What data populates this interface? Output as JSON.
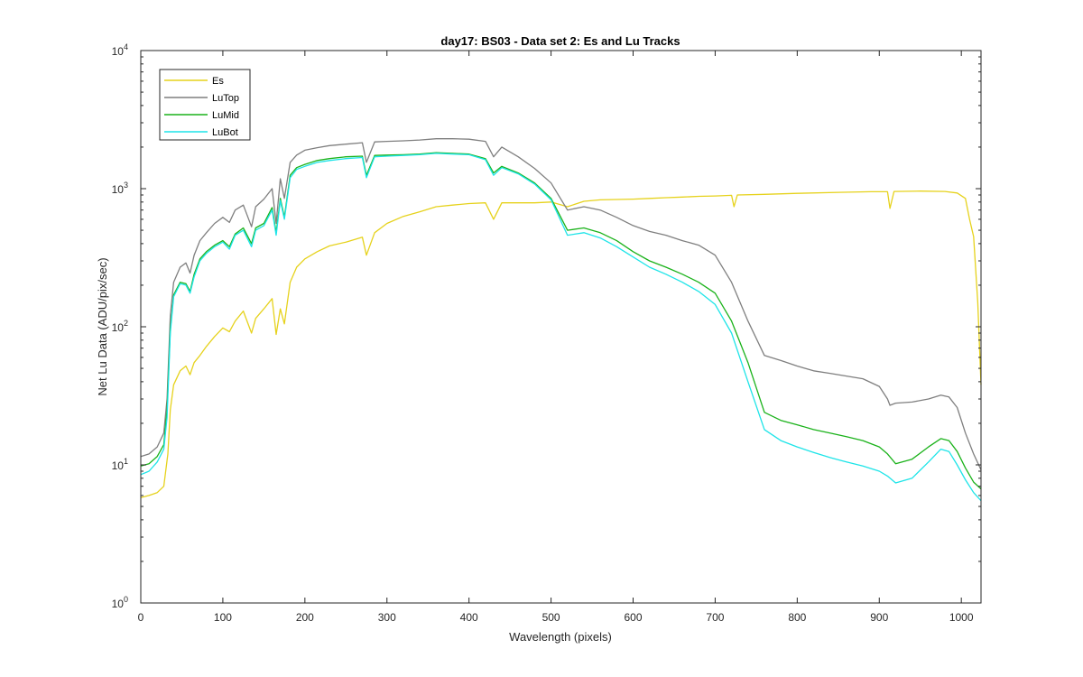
{
  "chart_data": {
    "type": "line",
    "title": "day17: BS03 - Data set 2: Es and Lu Tracks",
    "xlabel": "Wavelength (pixels)",
    "ylabel": "Net Lu Data (ADU/pix/sec)",
    "xlim": [
      0,
      1024
    ],
    "ylim": [
      1,
      10000
    ],
    "yscale": "log",
    "x_ticks": [
      0,
      100,
      200,
      300,
      400,
      500,
      600,
      700,
      800,
      900,
      1000
    ],
    "x_tick_labels": [
      "0",
      "100",
      "200",
      "300",
      "400",
      "500",
      "600",
      "700",
      "800",
      "900",
      "1000"
    ],
    "y_ticks": [
      1,
      10,
      100,
      1000,
      10000
    ],
    "y_tick_bases": [
      "10",
      "10",
      "10",
      "10",
      "10"
    ],
    "y_tick_exponents": [
      "0",
      "1",
      "2",
      "3",
      "4"
    ],
    "grid": false,
    "legend_position": "top-left",
    "series": [
      {
        "name": "Es",
        "color": "#e6d21c",
        "points": [
          [
            0,
            5.8
          ],
          [
            10,
            6.0
          ],
          [
            20,
            6.3
          ],
          [
            28,
            7.0
          ],
          [
            33,
            12
          ],
          [
            36,
            25
          ],
          [
            40,
            38
          ],
          [
            48,
            48
          ],
          [
            55,
            52
          ],
          [
            60,
            45
          ],
          [
            65,
            55
          ],
          [
            72,
            62
          ],
          [
            80,
            72
          ],
          [
            90,
            85
          ],
          [
            100,
            98
          ],
          [
            108,
            92
          ],
          [
            115,
            110
          ],
          [
            125,
            130
          ],
          [
            135,
            90
          ],
          [
            140,
            115
          ],
          [
            150,
            135
          ],
          [
            160,
            160
          ],
          [
            165,
            88
          ],
          [
            170,
            135
          ],
          [
            175,
            105
          ],
          [
            182,
            210
          ],
          [
            190,
            270
          ],
          [
            200,
            310
          ],
          [
            215,
            350
          ],
          [
            230,
            385
          ],
          [
            250,
            410
          ],
          [
            270,
            445
          ],
          [
            275,
            330
          ],
          [
            285,
            480
          ],
          [
            300,
            560
          ],
          [
            320,
            630
          ],
          [
            340,
            680
          ],
          [
            360,
            740
          ],
          [
            380,
            760
          ],
          [
            400,
            780
          ],
          [
            420,
            790
          ],
          [
            430,
            600
          ],
          [
            440,
            790
          ],
          [
            460,
            790
          ],
          [
            480,
            790
          ],
          [
            500,
            800
          ],
          [
            520,
            740
          ],
          [
            540,
            810
          ],
          [
            560,
            830
          ],
          [
            580,
            835
          ],
          [
            600,
            840
          ],
          [
            620,
            850
          ],
          [
            640,
            860
          ],
          [
            660,
            870
          ],
          [
            680,
            880
          ],
          [
            700,
            885
          ],
          [
            720,
            895
          ],
          [
            723,
            740
          ],
          [
            727,
            900
          ],
          [
            760,
            910
          ],
          [
            800,
            925
          ],
          [
            850,
            940
          ],
          [
            890,
            950
          ],
          [
            910,
            950
          ],
          [
            913,
            720
          ],
          [
            918,
            955
          ],
          [
            950,
            960
          ],
          [
            980,
            955
          ],
          [
            995,
            930
          ],
          [
            1005,
            850
          ],
          [
            1010,
            600
          ],
          [
            1015,
            450
          ],
          [
            1020,
            150
          ],
          [
            1024,
            38
          ]
        ]
      },
      {
        "name": "LuTop",
        "color": "#7f7f7f",
        "points": [
          [
            0,
            11.5
          ],
          [
            10,
            12.0
          ],
          [
            20,
            13.5
          ],
          [
            28,
            17
          ],
          [
            32,
            30
          ],
          [
            36,
            120
          ],
          [
            40,
            210
          ],
          [
            48,
            270
          ],
          [
            55,
            290
          ],
          [
            60,
            245
          ],
          [
            65,
            330
          ],
          [
            72,
            420
          ],
          [
            80,
            480
          ],
          [
            90,
            560
          ],
          [
            100,
            620
          ],
          [
            108,
            570
          ],
          [
            115,
            700
          ],
          [
            125,
            760
          ],
          [
            135,
            530
          ],
          [
            140,
            740
          ],
          [
            150,
            840
          ],
          [
            160,
            1000
          ],
          [
            165,
            560
          ],
          [
            170,
            1180
          ],
          [
            175,
            850
          ],
          [
            182,
            1550
          ],
          [
            190,
            1750
          ],
          [
            200,
            1900
          ],
          [
            215,
            1980
          ],
          [
            230,
            2050
          ],
          [
            250,
            2100
          ],
          [
            270,
            2150
          ],
          [
            275,
            1550
          ],
          [
            285,
            2180
          ],
          [
            300,
            2200
          ],
          [
            320,
            2220
          ],
          [
            340,
            2250
          ],
          [
            360,
            2300
          ],
          [
            380,
            2300
          ],
          [
            400,
            2280
          ],
          [
            420,
            2200
          ],
          [
            430,
            1700
          ],
          [
            440,
            2000
          ],
          [
            460,
            1700
          ],
          [
            480,
            1400
          ],
          [
            500,
            1100
          ],
          [
            520,
            700
          ],
          [
            540,
            740
          ],
          [
            560,
            700
          ],
          [
            580,
            620
          ],
          [
            600,
            540
          ],
          [
            620,
            490
          ],
          [
            640,
            460
          ],
          [
            660,
            420
          ],
          [
            680,
            390
          ],
          [
            700,
            330
          ],
          [
            720,
            210
          ],
          [
            740,
            110
          ],
          [
            760,
            62
          ],
          [
            780,
            57
          ],
          [
            800,
            52
          ],
          [
            820,
            48
          ],
          [
            840,
            46
          ],
          [
            860,
            44
          ],
          [
            880,
            42
          ],
          [
            900,
            37
          ],
          [
            910,
            30
          ],
          [
            913,
            27
          ],
          [
            920,
            28
          ],
          [
            940,
            28.5
          ],
          [
            960,
            30
          ],
          [
            975,
            32
          ],
          [
            985,
            31
          ],
          [
            995,
            26
          ],
          [
            1005,
            17
          ],
          [
            1015,
            12
          ],
          [
            1024,
            9.2
          ]
        ]
      },
      {
        "name": "LuMid",
        "color": "#1ab21a",
        "points": [
          [
            0,
            9.8
          ],
          [
            10,
            10.2
          ],
          [
            20,
            11.5
          ],
          [
            28,
            14
          ],
          [
            32,
            25
          ],
          [
            36,
            95
          ],
          [
            40,
            170
          ],
          [
            48,
            210
          ],
          [
            55,
            205
          ],
          [
            60,
            180
          ],
          [
            65,
            240
          ],
          [
            72,
            310
          ],
          [
            80,
            350
          ],
          [
            90,
            390
          ],
          [
            100,
            420
          ],
          [
            108,
            380
          ],
          [
            115,
            470
          ],
          [
            125,
            520
          ],
          [
            135,
            400
          ],
          [
            140,
            520
          ],
          [
            150,
            560
          ],
          [
            160,
            730
          ],
          [
            165,
            480
          ],
          [
            170,
            850
          ],
          [
            175,
            620
          ],
          [
            182,
            1250
          ],
          [
            190,
            1420
          ],
          [
            200,
            1500
          ],
          [
            215,
            1600
          ],
          [
            230,
            1650
          ],
          [
            250,
            1700
          ],
          [
            270,
            1720
          ],
          [
            275,
            1250
          ],
          [
            285,
            1740
          ],
          [
            300,
            1750
          ],
          [
            320,
            1760
          ],
          [
            340,
            1780
          ],
          [
            360,
            1820
          ],
          [
            380,
            1800
          ],
          [
            400,
            1780
          ],
          [
            420,
            1650
          ],
          [
            430,
            1300
          ],
          [
            440,
            1450
          ],
          [
            460,
            1300
          ],
          [
            480,
            1100
          ],
          [
            500,
            850
          ],
          [
            520,
            500
          ],
          [
            540,
            520
          ],
          [
            560,
            480
          ],
          [
            580,
            420
          ],
          [
            600,
            350
          ],
          [
            620,
            300
          ],
          [
            640,
            270
          ],
          [
            660,
            240
          ],
          [
            680,
            210
          ],
          [
            700,
            175
          ],
          [
            720,
            110
          ],
          [
            740,
            55
          ],
          [
            760,
            24
          ],
          [
            780,
            21
          ],
          [
            800,
            19.5
          ],
          [
            820,
            18
          ],
          [
            840,
            17
          ],
          [
            860,
            16
          ],
          [
            880,
            15
          ],
          [
            900,
            13.5
          ],
          [
            910,
            12
          ],
          [
            920,
            10.2
          ],
          [
            940,
            11
          ],
          [
            960,
            13.5
          ],
          [
            975,
            15.5
          ],
          [
            985,
            15
          ],
          [
            995,
            12.5
          ],
          [
            1005,
            9.5
          ],
          [
            1015,
            7.5
          ],
          [
            1024,
            6.7
          ]
        ]
      },
      {
        "name": "LuBot",
        "color": "#1de4e8",
        "points": [
          [
            0,
            8.5
          ],
          [
            10,
            9.0
          ],
          [
            20,
            10.5
          ],
          [
            28,
            13
          ],
          [
            32,
            22
          ],
          [
            36,
            90
          ],
          [
            40,
            165
          ],
          [
            48,
            205
          ],
          [
            55,
            200
          ],
          [
            60,
            175
          ],
          [
            65,
            230
          ],
          [
            72,
            300
          ],
          [
            80,
            340
          ],
          [
            90,
            380
          ],
          [
            100,
            410
          ],
          [
            108,
            365
          ],
          [
            115,
            460
          ],
          [
            125,
            500
          ],
          [
            135,
            380
          ],
          [
            140,
            500
          ],
          [
            150,
            540
          ],
          [
            160,
            700
          ],
          [
            165,
            460
          ],
          [
            170,
            820
          ],
          [
            175,
            600
          ],
          [
            182,
            1200
          ],
          [
            190,
            1380
          ],
          [
            200,
            1450
          ],
          [
            215,
            1550
          ],
          [
            230,
            1600
          ],
          [
            250,
            1650
          ],
          [
            270,
            1680
          ],
          [
            275,
            1200
          ],
          [
            285,
            1700
          ],
          [
            300,
            1720
          ],
          [
            320,
            1740
          ],
          [
            340,
            1760
          ],
          [
            360,
            1800
          ],
          [
            380,
            1780
          ],
          [
            400,
            1760
          ],
          [
            420,
            1620
          ],
          [
            430,
            1250
          ],
          [
            440,
            1420
          ],
          [
            460,
            1280
          ],
          [
            480,
            1080
          ],
          [
            500,
            830
          ],
          [
            520,
            460
          ],
          [
            540,
            480
          ],
          [
            560,
            440
          ],
          [
            580,
            380
          ],
          [
            600,
            320
          ],
          [
            620,
            270
          ],
          [
            640,
            240
          ],
          [
            660,
            210
          ],
          [
            680,
            180
          ],
          [
            700,
            145
          ],
          [
            720,
            90
          ],
          [
            740,
            40
          ],
          [
            760,
            18
          ],
          [
            780,
            15
          ],
          [
            800,
            13.5
          ],
          [
            820,
            12.3
          ],
          [
            840,
            11.3
          ],
          [
            860,
            10.5
          ],
          [
            880,
            9.8
          ],
          [
            900,
            9.0
          ],
          [
            910,
            8.3
          ],
          [
            920,
            7.4
          ],
          [
            940,
            8.0
          ],
          [
            960,
            10.5
          ],
          [
            975,
            13
          ],
          [
            985,
            12.5
          ],
          [
            995,
            10
          ],
          [
            1005,
            7.8
          ],
          [
            1015,
            6.3
          ],
          [
            1024,
            5.5
          ]
        ]
      }
    ]
  }
}
